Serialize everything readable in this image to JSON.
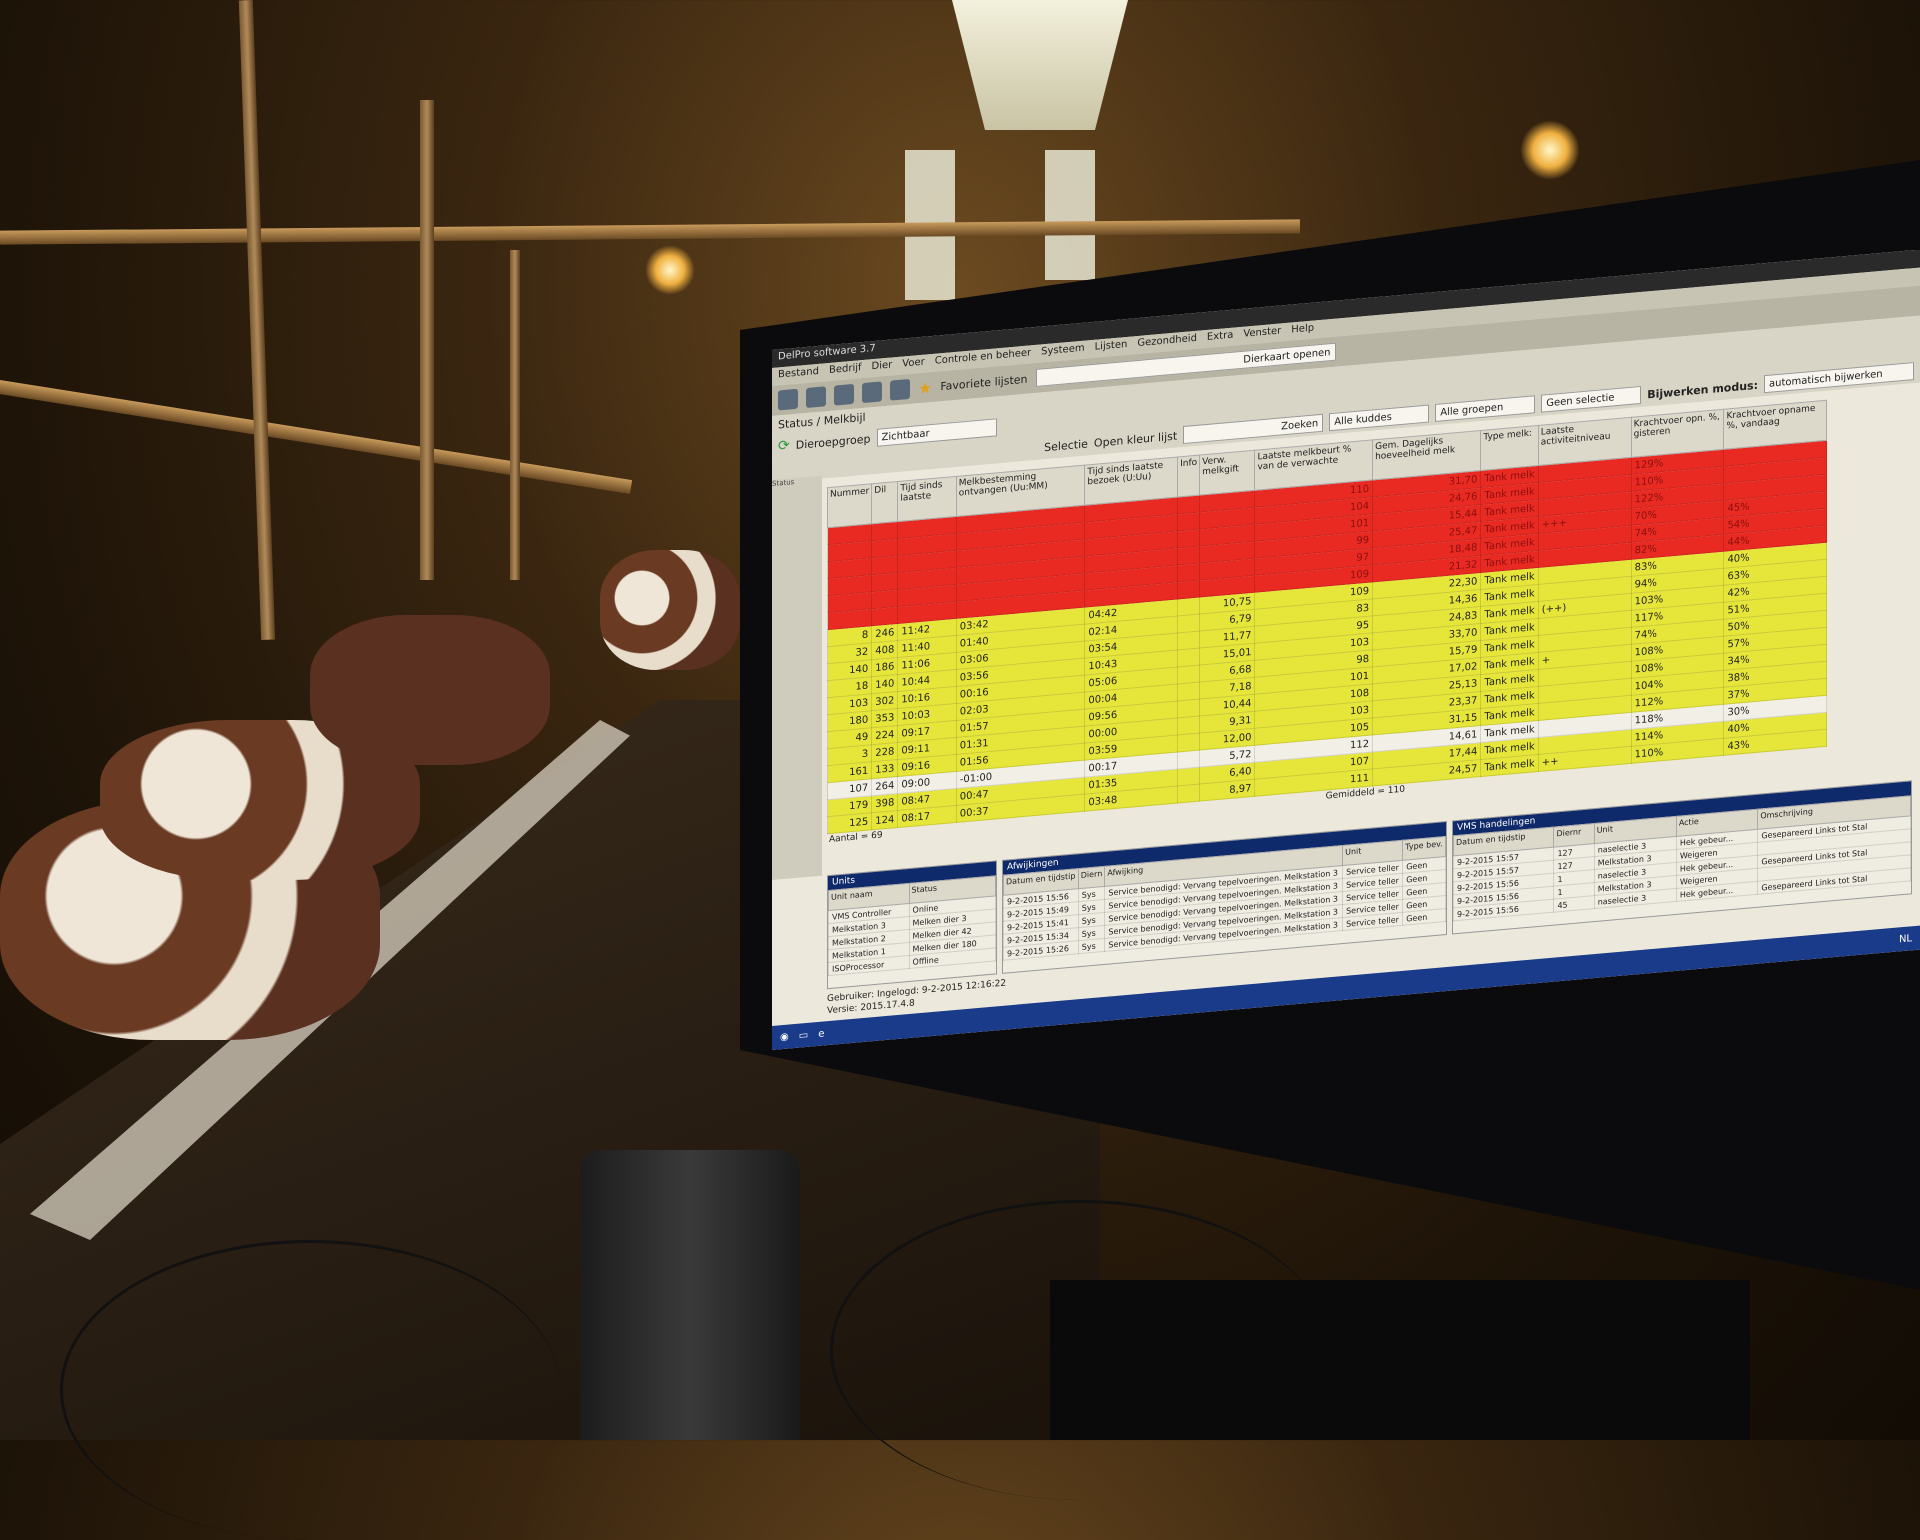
{
  "app": {
    "title": "DelPro software 3.7",
    "menu": [
      "Bestand",
      "Bedrijf",
      "Dier",
      "Voer",
      "Controle en beheer",
      "Systeem",
      "Lijsten",
      "Gezondheid",
      "Extra",
      "Venster",
      "Help"
    ],
    "favorites_label": "Favoriete lijsten",
    "diercard_button": "Dierkaart openen",
    "breadcrumb": "Status / Melkbijl",
    "group_label": "Dieroepgroep",
    "group_value": "Zichtbaar",
    "tab": "Status"
  },
  "toolbar": {
    "search_button": "Zoeken",
    "herd_select": "Alle kuddes",
    "group_select": "Alle groepen",
    "selection_select": "Geen selectie",
    "update_mode_label": "Bijwerken modus:",
    "update_mode_value": "automatisch bijwerken",
    "selectie": "Selectie",
    "open_lijst": "Open kleur lijst"
  },
  "table": {
    "headers": [
      "Nummer",
      "Dil",
      "Tijd sinds laatste",
      "Melkbestemming ontvangen (Uu:MM)",
      "Tijd sinds laatste bezoek (U:Uu)",
      "Info",
      "Verw. melkgift",
      "Laatste melkbeurt % van de verwachte",
      "Gem. Dagelijks hoeveelheid melk",
      "Type melk:",
      "Laatste activiteitniveau",
      "Krachtvoer opn. %, gisteren",
      "Krachtvoer opname %, vandaag"
    ],
    "rows": [
      {
        "status": "red",
        "cells": [
          "",
          "",
          "",
          "",
          "",
          "",
          "",
          "110",
          "31,70",
          "Tank melk",
          "",
          "129%",
          ""
        ]
      },
      {
        "status": "red",
        "cells": [
          "",
          "",
          "",
          "",
          "",
          "",
          "",
          "104",
          "24,76",
          "Tank melk",
          "",
          "110%",
          ""
        ]
      },
      {
        "status": "red",
        "cells": [
          "",
          "",
          "",
          "",
          "",
          "",
          "",
          "101",
          "15,44",
          "Tank melk",
          "",
          "122%",
          ""
        ]
      },
      {
        "status": "red",
        "cells": [
          "",
          "",
          "",
          "",
          "",
          "",
          "",
          "99",
          "25,47",
          "Tank melk",
          "+++",
          "70%",
          "45%"
        ]
      },
      {
        "status": "red",
        "cells": [
          "",
          "",
          "",
          "",
          "",
          "",
          "",
          "97",
          "18,48",
          "Tank melk",
          "",
          "74%",
          "54%"
        ]
      },
      {
        "status": "red",
        "cells": [
          "",
          "",
          "",
          "",
          "",
          "",
          "",
          "109",
          "21,32",
          "Tank melk",
          "",
          "82%",
          "44%"
        ]
      },
      {
        "status": "yellow",
        "cells": [
          "8",
          "246",
          "11:42",
          "03:42",
          "04:42",
          "",
          "10,75",
          "109",
          "22,30",
          "Tank melk",
          "",
          "83%",
          "40%"
        ]
      },
      {
        "status": "yellow",
        "cells": [
          "32",
          "408",
          "11:40",
          "01:40",
          "02:14",
          "",
          "6,79",
          "83",
          "14,36",
          "Tank melk",
          "",
          "94%",
          "63%"
        ]
      },
      {
        "status": "yellow",
        "cells": [
          "140",
          "186",
          "11:06",
          "03:06",
          "03:54",
          "",
          "11,77",
          "95",
          "24,83",
          "Tank melk",
          "(++)",
          "103%",
          "42%"
        ]
      },
      {
        "status": "yellow",
        "cells": [
          "18",
          "140",
          "10:44",
          "03:56",
          "10:43",
          "",
          "15,01",
          "103",
          "33,70",
          "Tank melk",
          "",
          "117%",
          "51%"
        ]
      },
      {
        "status": "yellow",
        "cells": [
          "103",
          "302",
          "10:16",
          "00:16",
          "05:06",
          "",
          "6,68",
          "98",
          "15,79",
          "Tank melk",
          "",
          "74%",
          "50%"
        ]
      },
      {
        "status": "yellow",
        "cells": [
          "180",
          "353",
          "10:03",
          "02:03",
          "00:04",
          "",
          "7,18",
          "101",
          "17,02",
          "Tank melk",
          "+",
          "108%",
          "57%"
        ]
      },
      {
        "status": "yellow",
        "cells": [
          "49",
          "224",
          "09:17",
          "01:57",
          "09:56",
          "",
          "10,44",
          "108",
          "25,13",
          "Tank melk",
          "",
          "108%",
          "34%"
        ]
      },
      {
        "status": "yellow",
        "cells": [
          "3",
          "228",
          "09:11",
          "01:31",
          "00:00",
          "",
          "9,31",
          "103",
          "23,37",
          "Tank melk",
          "",
          "104%",
          "38%"
        ]
      },
      {
        "status": "yellow",
        "cells": [
          "161",
          "133",
          "09:16",
          "01:56",
          "03:59",
          "",
          "12,00",
          "105",
          "31,15",
          "Tank melk",
          "",
          "112%",
          "37%"
        ]
      },
      {
        "status": "white",
        "cells": [
          "107",
          "264",
          "09:00",
          "-01:00",
          "00:17",
          "",
          "5,72",
          "112",
          "14,61",
          "Tank melk",
          "",
          "118%",
          "30%"
        ]
      },
      {
        "status": "yellow",
        "cells": [
          "179",
          "398",
          "08:47",
          "00:47",
          "01:35",
          "",
          "6,40",
          "107",
          "17,44",
          "Tank melk",
          "",
          "114%",
          "40%"
        ]
      },
      {
        "status": "yellow",
        "cells": [
          "125",
          "124",
          "08:17",
          "00:37",
          "03:48",
          "",
          "8,97",
          "111",
          "24,57",
          "Tank melk",
          "++",
          "110%",
          "43%"
        ]
      }
    ],
    "footer_count": "Aantal = 69",
    "footer_avg": "Gemiddeld = 110"
  },
  "units": {
    "title": "Units",
    "headers": [
      "Unit naam",
      "Status"
    ],
    "rows": [
      [
        "VMS Controller",
        "Online"
      ],
      [
        "Melkstation 3",
        "Melken dier 3"
      ],
      [
        "Melkstation 2",
        "Melken dier 42"
      ],
      [
        "Melkstation 1",
        "Melken dier 180"
      ],
      [
        "ISOProcessor",
        "Offline"
      ]
    ]
  },
  "afwijkingen": {
    "title": "Afwijkingen",
    "headers": [
      "Datum en tijdstip",
      "Diern",
      "Afwijking",
      "Unit",
      "Type bev."
    ],
    "rows": [
      [
        "9-2-2015 15:56",
        "Sys",
        "Service benodigd: Vervang tepelvoeringen. Melkstation 3",
        "Service teller",
        "Geen"
      ],
      [
        "9-2-2015 15:49",
        "Sys",
        "Service benodigd: Vervang tepelvoeringen. Melkstation 3",
        "Service teller",
        "Geen"
      ],
      [
        "9-2-2015 15:41",
        "Sys",
        "Service benodigd: Vervang tepelvoeringen. Melkstation 3",
        "Service teller",
        "Geen"
      ],
      [
        "9-2-2015 15:34",
        "Sys",
        "Service benodigd: Vervang tepelvoeringen. Melkstation 3",
        "Service teller",
        "Geen"
      ],
      [
        "9-2-2015 15:26",
        "Sys",
        "Service benodigd: Vervang tepelvoeringen. Melkstation 3",
        "Service teller",
        "Geen"
      ]
    ]
  },
  "vms": {
    "title": "VMS handelingen",
    "headers": [
      "Datum en tijdstip",
      "Diernr",
      "Unit",
      "Actie",
      "Omschrijving"
    ],
    "rows": [
      [
        "9-2-2015 15:57",
        "127",
        "naselectie 3",
        "Hek gebeur...",
        "Gesepareerd Links tot Stal"
      ],
      [
        "9-2-2015 15:57",
        "127",
        "Melkstation 3",
        "Weigeren",
        ""
      ],
      [
        "9-2-2015 15:56",
        "1",
        "naselectie 3",
        "Hek gebeur...",
        "Gesepareerd Links tot Stal"
      ],
      [
        "9-2-2015 15:56",
        "1",
        "Melkstation 3",
        "Weigeren",
        ""
      ],
      [
        "9-2-2015 15:56",
        "45",
        "naselectie 3",
        "Hek gebeur...",
        "Gesepareerd Links tot Stal"
      ]
    ]
  },
  "statusbar": {
    "user": "Gebruiker: Ingelogd: 9-2-2015 12:16:22",
    "version": "Versie: 2015.17.4.8"
  },
  "tray": {
    "language": "NL"
  },
  "colors": {
    "alert_red": "#e92a22",
    "warning_yellow": "#e6e63a",
    "panel_header": "#0f2a6a"
  }
}
